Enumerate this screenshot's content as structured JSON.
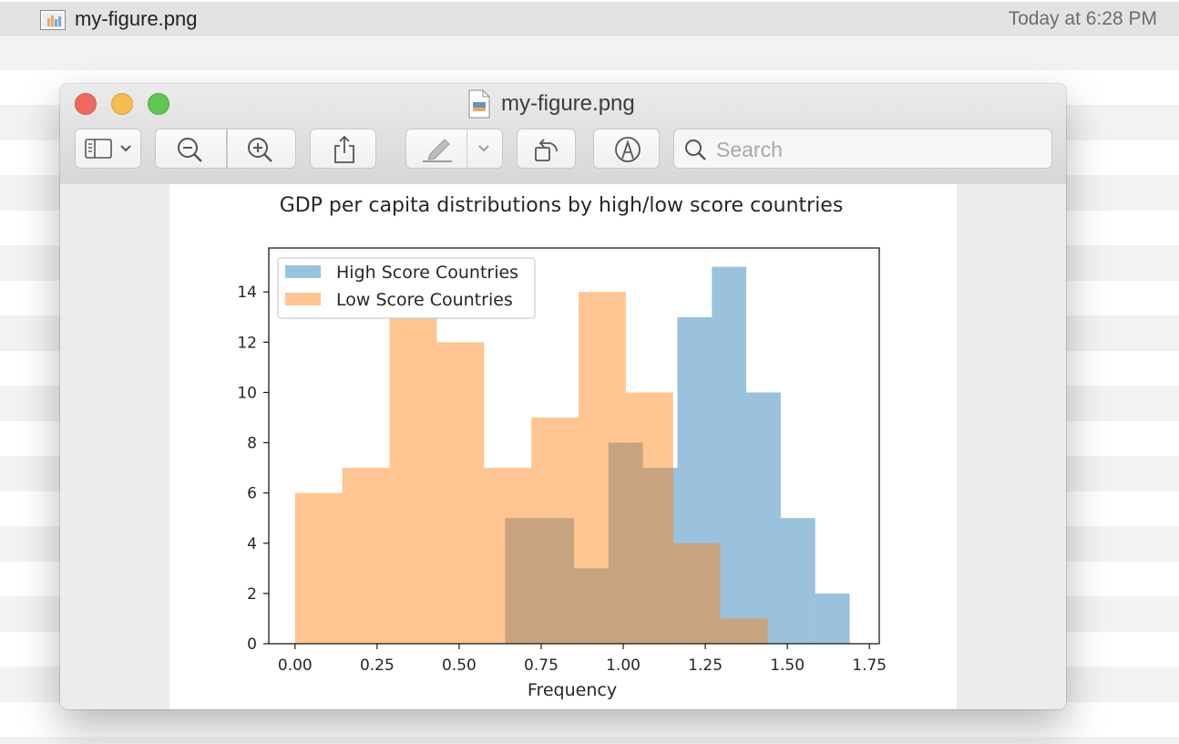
{
  "finder_bar": {
    "file_name": "my-figure.png",
    "timestamp": "Today at 6:28 PM"
  },
  "window": {
    "title": "my-figure.png",
    "toolbar": {
      "sidebar_icon": "sidebar-icon",
      "zoom_out_icon": "zoom-out-icon",
      "zoom_in_icon": "zoom-in-icon",
      "share_icon": "share-icon",
      "markup_icon": "highlighter-icon",
      "rotate_icon": "rotate-left-icon",
      "annotate_icon": "markup-pen-icon",
      "search_placeholder": "Search"
    }
  },
  "chart_data": {
    "type": "histogram",
    "title": "GDP per capita distributions by high/low score countries",
    "xlabel": "Frequency",
    "ylabel": "",
    "xlim": [
      -0.08,
      1.78
    ],
    "ylim": [
      0,
      15.75
    ],
    "xticks": [
      0.0,
      0.25,
      0.5,
      0.75,
      1.0,
      1.25,
      1.5,
      1.75
    ],
    "xtick_labels": [
      "0.00",
      "0.25",
      "0.50",
      "0.75",
      "1.00",
      "1.25",
      "1.50",
      "1.75"
    ],
    "yticks": [
      0,
      2,
      4,
      6,
      8,
      10,
      12,
      14
    ],
    "ytick_labels": [
      "0",
      "2",
      "4",
      "6",
      "8",
      "10",
      "12",
      "14"
    ],
    "grid": false,
    "legend_position": "upper-left",
    "series": [
      {
        "name": "High Score Countries",
        "color": "#1f77b4",
        "opacity": 0.45,
        "bin_edges": [
          0.64,
          0.745,
          0.85,
          0.955,
          1.06,
          1.165,
          1.27,
          1.375,
          1.48,
          1.585,
          1.69
        ],
        "counts": [
          5,
          5,
          3,
          8,
          7,
          13,
          15,
          10,
          5,
          2
        ]
      },
      {
        "name": "Low Score Countries",
        "color": "#ff7f0e",
        "opacity": 0.45,
        "bin_edges": [
          0.0,
          0.144,
          0.288,
          0.432,
          0.576,
          0.72,
          0.864,
          1.008,
          1.152,
          1.296,
          1.44
        ],
        "counts": [
          6,
          7,
          13,
          12,
          7,
          9,
          14,
          10,
          4,
          1
        ]
      }
    ]
  }
}
